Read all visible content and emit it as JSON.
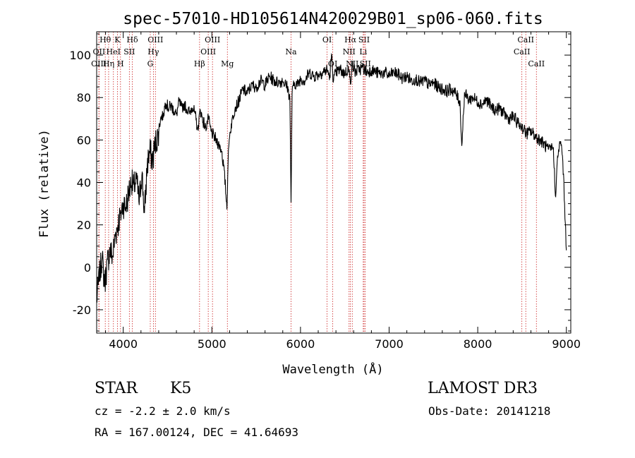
{
  "chart_data": {
    "type": "line",
    "title": "spec-57010-HD105614N420029B01_sp06-060.fits",
    "xlabel": "Wavelength (Å)",
    "ylabel": "Flux (relative)",
    "xlim": [
      3700,
      9050
    ],
    "ylim": [
      -31,
      111
    ],
    "xticks": [
      4000,
      5000,
      6000,
      7000,
      8000,
      9000
    ],
    "yticks": [
      -20,
      0,
      20,
      40,
      60,
      80,
      100
    ],
    "grid": false,
    "series": [
      {
        "name": "flux",
        "color": "#000000",
        "x": [
          3700,
          3730,
          3760,
          3790,
          3820,
          3850,
          3880,
          3910,
          3940,
          3970,
          4000,
          4030,
          4060,
          4090,
          4120,
          4150,
          4180,
          4210,
          4240,
          4270,
          4300,
          4330,
          4360,
          4390,
          4420,
          4450,
          4480,
          4510,
          4540,
          4570,
          4600,
          4630,
          4660,
          4690,
          4720,
          4750,
          4780,
          4810,
          4840,
          4870,
          4900,
          4930,
          4960,
          4990,
          5020,
          5050,
          5080,
          5110,
          5140,
          5170,
          5183,
          5200,
          5230,
          5260,
          5300,
          5350,
          5400,
          5450,
          5500,
          5550,
          5600,
          5650,
          5700,
          5750,
          5800,
          5850,
          5880,
          5893,
          5905,
          5930,
          5970,
          6000,
          6050,
          6100,
          6150,
          6200,
          6250,
          6300,
          6330,
          6350,
          6370,
          6400,
          6450,
          6500,
          6540,
          6563,
          6580,
          6620,
          6660,
          6700,
          6750,
          6800,
          6850,
          6900,
          6950,
          7000,
          7050,
          7100,
          7150,
          7200,
          7250,
          7300,
          7350,
          7400,
          7450,
          7500,
          7550,
          7600,
          7650,
          7700,
          7750,
          7800,
          7820,
          7850,
          7900,
          7950,
          8000,
          8050,
          8100,
          8150,
          8200,
          8250,
          8300,
          8350,
          8400,
          8450,
          8500,
          8550,
          8600,
          8650,
          8700,
          8750,
          8800,
          8850,
          8880,
          8900,
          8920,
          8940,
          8960,
          8980,
          9000
        ],
        "values": [
          -15,
          -5,
          5,
          -8,
          2,
          8,
          5,
          15,
          20,
          25,
          30,
          28,
          35,
          40,
          38,
          42,
          30,
          45,
          25,
          48,
          55,
          50,
          58,
          62,
          70,
          72,
          78,
          75,
          76,
          74,
          72,
          78,
          75,
          77,
          74,
          73,
          76,
          72,
          65,
          74,
          69,
          66,
          70,
          64,
          62,
          60,
          58,
          55,
          45,
          28,
          50,
          62,
          70,
          75,
          78,
          84,
          82,
          86,
          85,
          88,
          86,
          90,
          88,
          87,
          88,
          85,
          80,
          30,
          82,
          87,
          86,
          89,
          88,
          92,
          90,
          91,
          92,
          93,
          90,
          100,
          88,
          92,
          93,
          91,
          94,
          87,
          95,
          92,
          93,
          94,
          92,
          93,
          92,
          91,
          92,
          90,
          92,
          91,
          89,
          90,
          88,
          89,
          87,
          88,
          86,
          87,
          85,
          84,
          83,
          84,
          82,
          78,
          57,
          82,
          79,
          80,
          78,
          77,
          79,
          76,
          74,
          75,
          72,
          70,
          71,
          68,
          66,
          63,
          64,
          62,
          60,
          58,
          55,
          57,
          33,
          52,
          57,
          58,
          50,
          30,
          8
        ]
      }
    ],
    "line_markers": [
      {
        "label": "Hθ",
        "wavelength": 3797,
        "row": 1
      },
      {
        "label": "OII",
        "wavelength": 3727,
        "row": 2
      },
      {
        "label": "OIII",
        "wavelength": 3725,
        "row": 3
      },
      {
        "label": "K",
        "wavelength": 3934,
        "row": 1
      },
      {
        "label": "HeI",
        "wavelength": 3889,
        "row": 2
      },
      {
        "label": "Hη",
        "wavelength": 3835,
        "row": 3
      },
      {
        "label": "H",
        "wavelength": 3969,
        "row": 3
      },
      {
        "label": "SII",
        "wavelength": 4069,
        "row": 2
      },
      {
        "label": "Hδ",
        "wavelength": 4102,
        "row": 1
      },
      {
        "label": "OIII",
        "wavelength": 4363,
        "row": 1
      },
      {
        "label": "Hγ",
        "wavelength": 4340,
        "row": 2
      },
      {
        "label": "G",
        "wavelength": 4305,
        "row": 3
      },
      {
        "label": "Hβ",
        "wavelength": 4861,
        "row": 3
      },
      {
        "label": "OIII",
        "wavelength": 4959,
        "row": 2
      },
      {
        "label": "OIII",
        "wavelength": 5007,
        "row": 1
      },
      {
        "label": "Mg",
        "wavelength": 5175,
        "row": 3
      },
      {
        "label": "Na",
        "wavelength": 5893,
        "row": 2
      },
      {
        "label": "OI",
        "wavelength": 6300,
        "row": 1
      },
      {
        "label": "OI",
        "wavelength": 6364,
        "row": 3
      },
      {
        "label": "Hα",
        "wavelength": 6563,
        "row": 1
      },
      {
        "label": "NII",
        "wavelength": 6548,
        "row": 2
      },
      {
        "label": "NII",
        "wavelength": 6584,
        "row": 3
      },
      {
        "label": "SII",
        "wavelength": 6717,
        "row": 1
      },
      {
        "label": "Li",
        "wavelength": 6708,
        "row": 2
      },
      {
        "label": "SII",
        "wavelength": 6731,
        "row": 3
      },
      {
        "label": "CaII",
        "wavelength": 8542,
        "row": 1
      },
      {
        "label": "CaII",
        "wavelength": 8498,
        "row": 2
      },
      {
        "label": "CaII",
        "wavelength": 8662,
        "row": 3
      }
    ]
  },
  "info": {
    "object_type": "STAR",
    "subclass": "K5",
    "survey": "LAMOST DR3",
    "redshift": "cz = -2.2 ± 2.0 km/s",
    "obs_date": "Obs-Date: 20141218",
    "coords": "RA = 167.00124, DEC =  41.64693"
  }
}
